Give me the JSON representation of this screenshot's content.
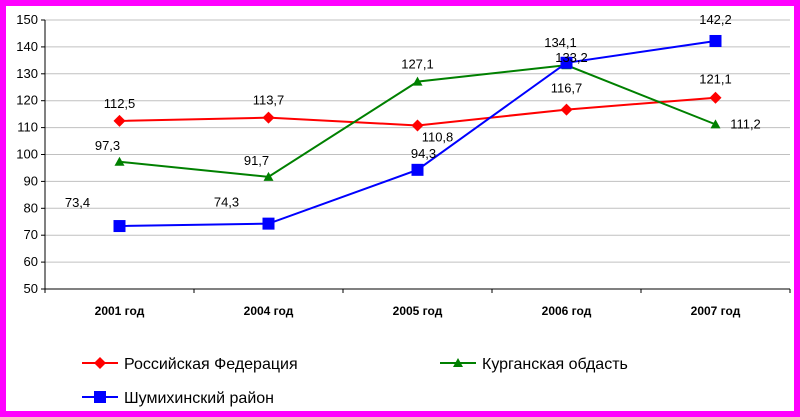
{
  "chart_data": {
    "type": "line",
    "categories": [
      "2001 год",
      "2004 год",
      "2005 год",
      "2006 год",
      "2007 год"
    ],
    "ylim": [
      50,
      150
    ],
    "yticks": [
      50,
      60,
      70,
      80,
      90,
      100,
      110,
      120,
      130,
      140,
      150
    ],
    "grid": true,
    "legend_position": "bottom",
    "series": [
      {
        "name": "Российская Федерация",
        "color": "#ff0000",
        "marker": "diamond",
        "values": [
          112.5,
          113.7,
          110.8,
          116.7,
          121.1
        ],
        "labels": [
          "112,5",
          "113,7",
          "110,8",
          "116,7",
          "121,1"
        ]
      },
      {
        "name": "Курганская обдасть",
        "color": "#008000",
        "marker": "triangle",
        "values": [
          97.3,
          91.7,
          127.1,
          133.2,
          111.2
        ],
        "labels": [
          "97,3",
          "91,7",
          "127,1",
          "133,2",
          "111,2"
        ]
      },
      {
        "name": "Шумихинский район",
        "color": "#0000ff",
        "marker": "square",
        "values": [
          73.4,
          74.3,
          94.3,
          134.1,
          142.2
        ],
        "labels": [
          "73,4",
          "74,3",
          "94,3",
          "134,1",
          "142,2"
        ]
      }
    ]
  }
}
